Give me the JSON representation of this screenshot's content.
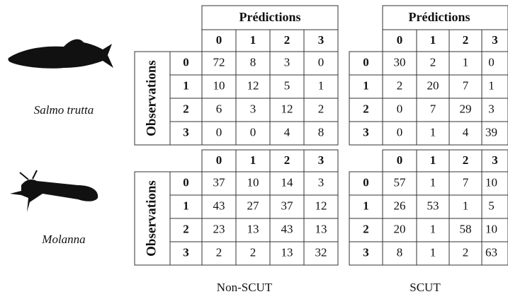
{
  "species": [
    "Salmo trutta",
    "Molanna"
  ],
  "panels": [
    {
      "caption": "Non-SCUT",
      "matrices": [
        {
          "header": "Prédictions",
          "row_title": "Observations",
          "columns": [
            "0",
            "1",
            "2",
            "3"
          ],
          "rows": [
            {
              "label": "0",
              "cells": [
                72,
                8,
                3,
                0
              ]
            },
            {
              "label": "1",
              "cells": [
                10,
                12,
                5,
                1
              ]
            },
            {
              "label": "2",
              "cells": [
                6,
                3,
                12,
                2
              ]
            },
            {
              "label": "3",
              "cells": [
                0,
                0,
                4,
                8
              ]
            }
          ]
        },
        {
          "row_title": "Observations",
          "columns": [
            "0",
            "1",
            "2",
            "3"
          ],
          "rows": [
            {
              "label": "0",
              "cells": [
                37,
                10,
                14,
                3
              ]
            },
            {
              "label": "1",
              "cells": [
                43,
                27,
                37,
                12
              ]
            },
            {
              "label": "2",
              "cells": [
                23,
                13,
                43,
                13
              ]
            },
            {
              "label": "3",
              "cells": [
                2,
                2,
                13,
                32
              ]
            }
          ]
        }
      ]
    },
    {
      "caption": "SCUT",
      "matrices": [
        {
          "header": "Prédictions",
          "columns": [
            "0",
            "1",
            "2",
            "3"
          ],
          "rows": [
            {
              "label": "0",
              "cells": [
                30,
                2,
                1,
                0
              ]
            },
            {
              "label": "1",
              "cells": [
                2,
                20,
                7,
                1
              ]
            },
            {
              "label": "2",
              "cells": [
                0,
                7,
                29,
                3
              ]
            },
            {
              "label": "3",
              "cells": [
                0,
                1,
                4,
                39
              ]
            }
          ]
        },
        {
          "columns": [
            "0",
            "1",
            "2",
            "3"
          ],
          "rows": [
            {
              "label": "0",
              "cells": [
                57,
                1,
                7,
                10
              ]
            },
            {
              "label": "1",
              "cells": [
                26,
                53,
                1,
                5
              ]
            },
            {
              "label": "2",
              "cells": [
                20,
                1,
                58,
                10
              ]
            },
            {
              "label": "3",
              "cells": [
                8,
                1,
                2,
                63
              ]
            }
          ]
        }
      ]
    }
  ]
}
